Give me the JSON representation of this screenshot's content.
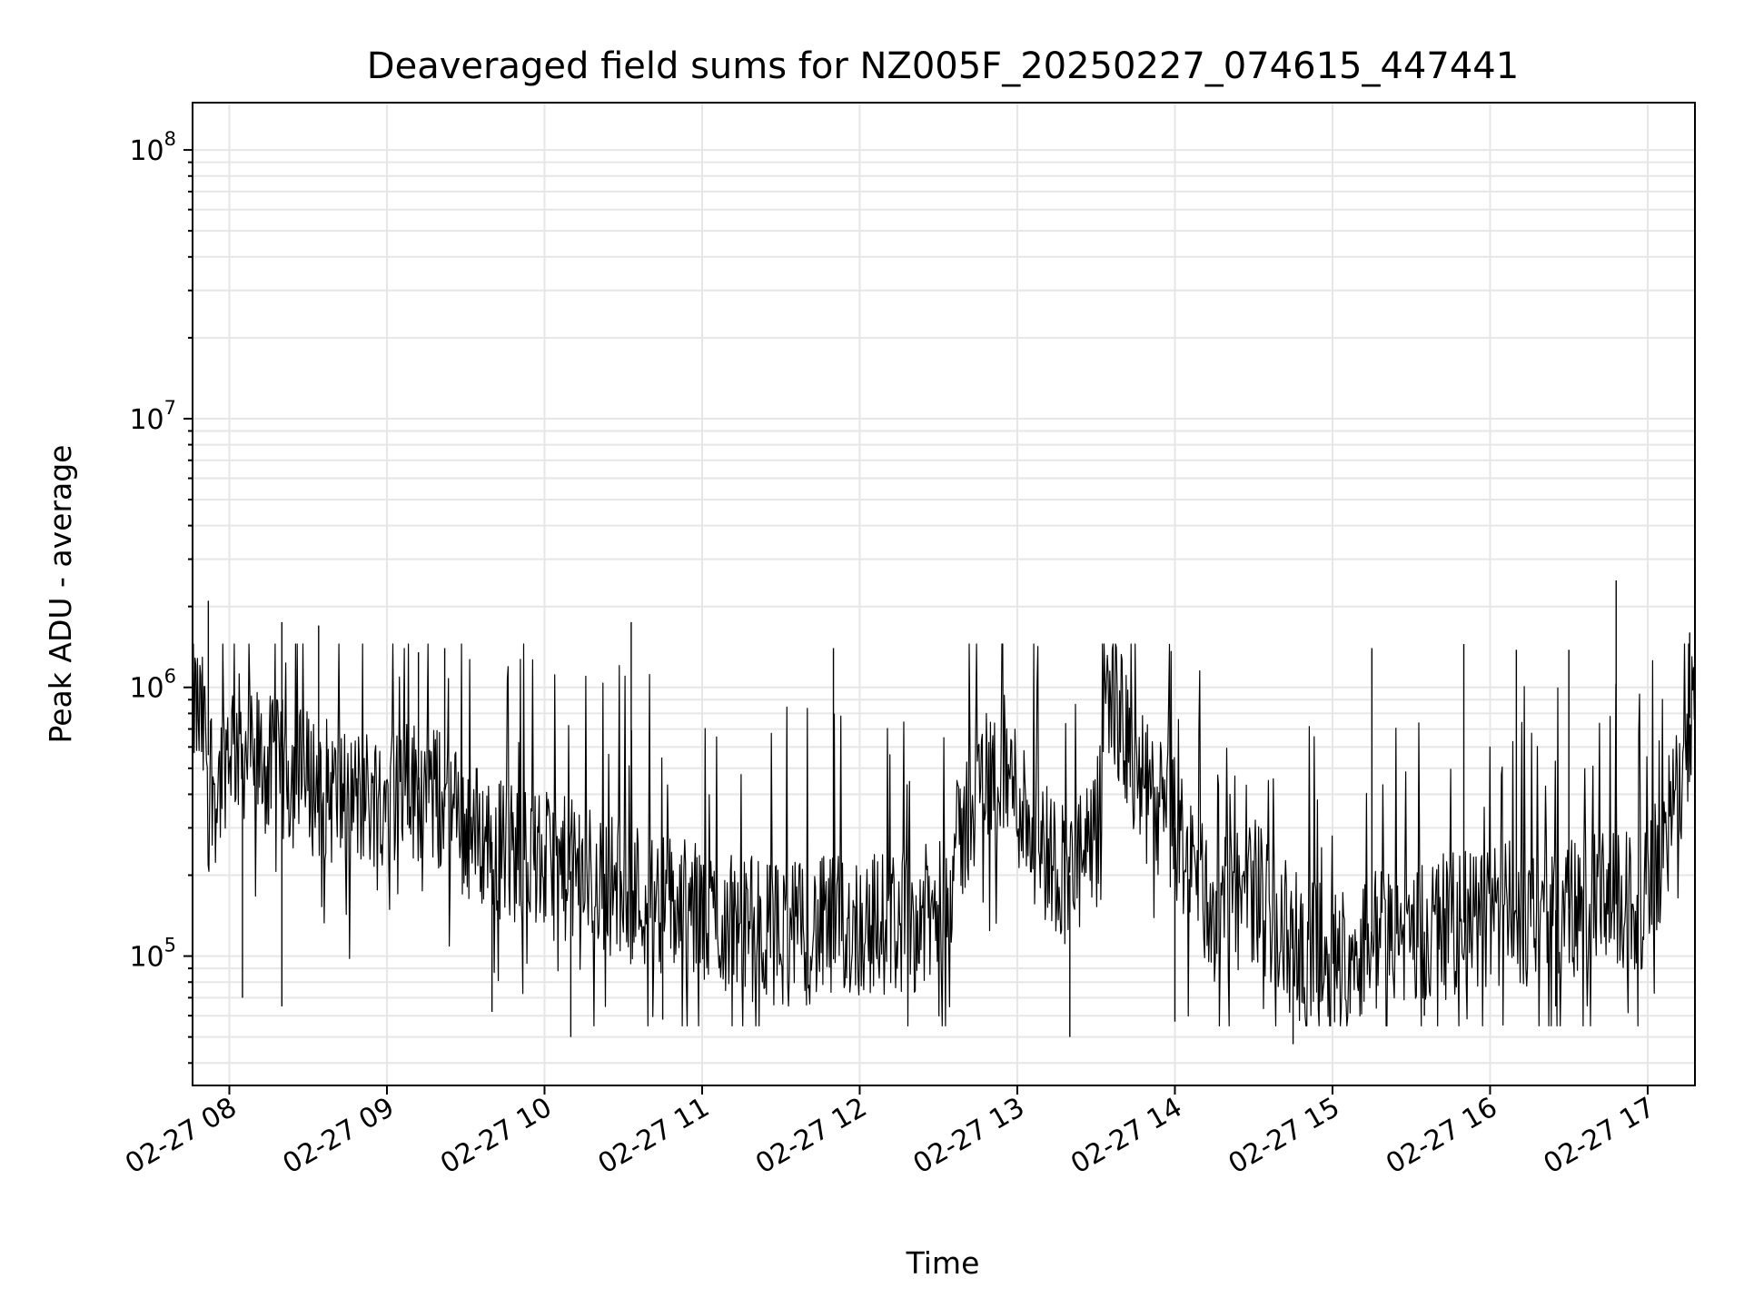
{
  "chart_data": {
    "type": "line",
    "title": "Deaveraged field sums for NZ005F_20250227_074615_447441",
    "xlabel": "Time",
    "ylabel": "Peak ADU - average",
    "yscale": "log",
    "grid": true,
    "line_color": "#000000",
    "xlim": [
      "2025-02-27 07:46",
      "2025-02-27 17:18"
    ],
    "ylim": [
      33000,
      150000000
    ],
    "x_ticks": [
      {
        "value": "2025-02-27 08:00",
        "label": "02-27 08"
      },
      {
        "value": "2025-02-27 09:00",
        "label": "02-27 09"
      },
      {
        "value": "2025-02-27 10:00",
        "label": "02-27 10"
      },
      {
        "value": "2025-02-27 11:00",
        "label": "02-27 11"
      },
      {
        "value": "2025-02-27 12:00",
        "label": "02-27 12"
      },
      {
        "value": "2025-02-27 13:00",
        "label": "02-27 13"
      },
      {
        "value": "2025-02-27 14:00",
        "label": "02-27 14"
      },
      {
        "value": "2025-02-27 15:00",
        "label": "02-27 15"
      },
      {
        "value": "2025-02-27 16:00",
        "label": "02-27 16"
      },
      {
        "value": "2025-02-27 17:00",
        "label": "02-27 17"
      }
    ],
    "y_ticks": [
      {
        "value": 100000,
        "base": "10",
        "exp": "5"
      },
      {
        "value": 1000000,
        "base": "10",
        "exp": "6"
      },
      {
        "value": 10000000,
        "base": "10",
        "exp": "7"
      },
      {
        "value": 100000000,
        "base": "10",
        "exp": "8"
      }
    ],
    "series": [
      {
        "x": [
          "2025-02-27 07:46",
          "2025-02-27 07:50",
          "2025-02-27 07:55",
          "2025-02-27 08:00",
          "2025-02-27 08:15",
          "2025-02-27 08:30",
          "2025-02-27 08:45",
          "2025-02-27 09:00",
          "2025-02-27 09:15",
          "2025-02-27 09:30",
          "2025-02-27 09:45",
          "2025-02-27 10:00",
          "2025-02-27 10:15",
          "2025-02-27 10:30",
          "2025-02-27 10:45",
          "2025-02-27 11:00",
          "2025-02-27 11:15",
          "2025-02-27 11:30",
          "2025-02-27 11:45",
          "2025-02-27 12:00",
          "2025-02-27 12:15",
          "2025-02-27 12:30",
          "2025-02-27 12:45",
          "2025-02-27 12:55",
          "2025-02-27 13:10",
          "2025-02-27 13:20",
          "2025-02-27 13:30",
          "2025-02-27 13:35",
          "2025-02-27 13:45",
          "2025-02-27 14:00",
          "2025-02-27 14:15",
          "2025-02-27 14:30",
          "2025-02-27 14:45",
          "2025-02-27 15:00",
          "2025-02-27 15:15",
          "2025-02-27 15:30",
          "2025-02-27 15:45",
          "2025-02-27 16:00",
          "2025-02-27 16:15",
          "2025-02-27 16:30",
          "2025-02-27 16:45",
          "2025-02-27 17:00",
          "2025-02-27 17:10",
          "2025-02-27 17:18"
        ],
        "y": [
          900000,
          700000,
          400000,
          650000,
          500000,
          450000,
          380000,
          400000,
          420000,
          300000,
          250000,
          220000,
          200000,
          180000,
          160000,
          140000,
          130000,
          120000,
          125000,
          130000,
          135000,
          140000,
          450000,
          500000,
          250000,
          200000,
          250000,
          1100000,
          450000,
          300000,
          140000,
          180000,
          110000,
          95000,
          115000,
          120000,
          130000,
          140000,
          145000,
          150000,
          155000,
          160000,
          350000,
          1000000
        ],
        "spikes": [
          {
            "x": "2025-02-27 07:52",
            "y": 2100000
          },
          {
            "x": "2025-02-27 08:20",
            "y": 1750000
          },
          {
            "x": "2025-02-27 08:34",
            "y": 1700000
          },
          {
            "x": "2025-02-27 09:12",
            "y": 1350000
          },
          {
            "x": "2025-02-27 09:22",
            "y": 1400000
          },
          {
            "x": "2025-02-27 10:33",
            "y": 1750000
          },
          {
            "x": "2025-02-27 11:50",
            "y": 1400000
          },
          {
            "x": "2025-02-27 15:15",
            "y": 1400000
          },
          {
            "x": "2025-02-27 15:50",
            "y": 1450000
          },
          {
            "x": "2025-02-27 16:10",
            "y": 1380000
          },
          {
            "x": "2025-02-27 16:30",
            "y": 1380000
          },
          {
            "x": "2025-02-27 16:48",
            "y": 2500000
          },
          {
            "x": "2025-02-27 17:16",
            "y": 1600000
          }
        ],
        "dips": [
          {
            "x": "2025-02-27 08:05",
            "y": 70000
          },
          {
            "x": "2025-02-27 08:20",
            "y": 65000
          },
          {
            "x": "2025-02-27 09:40",
            "y": 62000
          },
          {
            "x": "2025-02-27 10:10",
            "y": 50000
          },
          {
            "x": "2025-02-27 10:45",
            "y": 58000
          },
          {
            "x": "2025-02-27 13:20",
            "y": 50000
          },
          {
            "x": "2025-02-27 14:00",
            "y": 57000
          },
          {
            "x": "2025-02-27 14:45",
            "y": 47000
          },
          {
            "x": "2025-02-27 15:35",
            "y": 60000
          },
          {
            "x": "2025-02-27 16:25",
            "y": 65000
          }
        ]
      }
    ]
  }
}
